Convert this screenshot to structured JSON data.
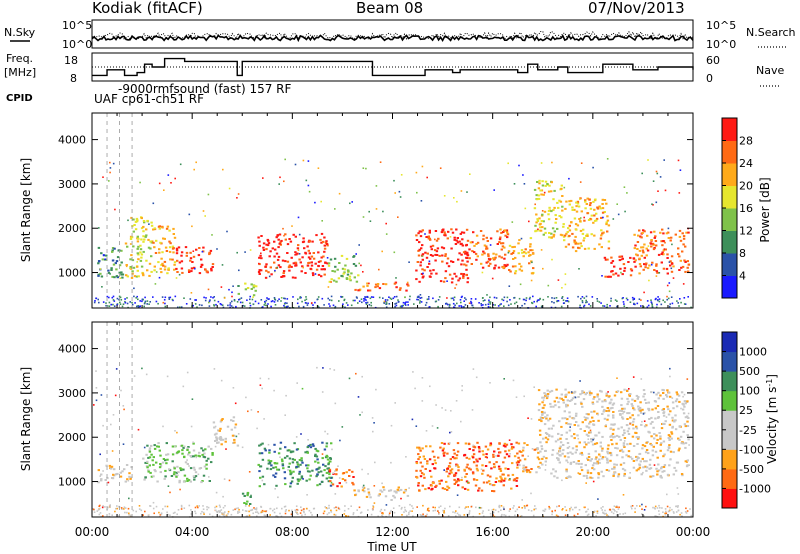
{
  "header": {
    "station": "Kodiak (fitACF)",
    "beam": "Beam 08",
    "date": "07/Nov/2013"
  },
  "left_labels": {
    "nsky": "N.Sky",
    "freq": "Freq.",
    "freq_unit": "[MHz]",
    "cpid": "CPID"
  },
  "right_labels": {
    "nsearch": "N.Search",
    "nave": "Nave"
  },
  "cpid_text": {
    "line1": "-9000rmfsound (fast) 157 RF",
    "line2": "UAF cp61-ch51 RF"
  },
  "colors": {
    "power": [
      "#1a1aff",
      "#2a52a8",
      "#3d8f5a",
      "#7fc24a",
      "#e6e62e",
      "#ffaa1a",
      "#ff6a14",
      "#ff1a14"
    ],
    "velocity": [
      "#ff1010",
      "#ff6a14",
      "#ffa21a",
      "#c8c8c8",
      "#c8c8c8",
      "#5ec23a",
      "#3d8f5a",
      "#2a52a8",
      "#1a2ab4"
    ]
  },
  "chart_data": [
    {
      "type": "line",
      "panel": "noise",
      "ylabel_left": "N.Sky",
      "ylabel_right": "N.Search",
      "yticks": [
        "10^5",
        "10^0"
      ],
      "yticks_right": [
        "10^5",
        "10^0"
      ],
      "xlim": [
        0,
        24
      ]
    },
    {
      "type": "line",
      "panel": "frequency / nave",
      "ylabel_left": "Freq. [MHz]",
      "yticks_left": [
        "18",
        "8"
      ],
      "ylabel_right": "Nave",
      "yticks_right": [
        "60",
        "0"
      ],
      "series": [
        {
          "name": "Freq.",
          "x": [
            0,
            0.6,
            1.3,
            1.8,
            2.1,
            2.4,
            2.9,
            3.7,
            5.8,
            6.0,
            11.0,
            11.2,
            13.3,
            14.4,
            14.7,
            17.0,
            17.4,
            17.8,
            18.6,
            19.0,
            20.4,
            21.6,
            22.6,
            24
          ],
          "values": [
            10,
            12,
            10,
            11,
            14,
            13,
            16,
            15,
            10,
            15,
            15,
            10,
            12,
            11,
            12,
            11,
            14,
            12,
            13,
            11,
            14,
            12,
            13,
            12
          ]
        },
        {
          "name": "Nave",
          "x": [
            0,
            24
          ],
          "values": [
            30,
            30
          ]
        }
      ],
      "xlim": [
        0,
        24
      ]
    },
    {
      "type": "heatmap",
      "panel": "power",
      "ylabel": "Slant Range [km]",
      "yticks": [
        1000,
        2000,
        3000,
        4000
      ],
      "colorbar_label": "Power [dB]",
      "colorbar_ticks": [
        4,
        8,
        12,
        16,
        20,
        24,
        28
      ],
      "xlim": [
        0,
        24
      ],
      "ylim": [
        200,
        4600
      ],
      "blobs": [
        {
          "t0": 0.2,
          "t1": 1.3,
          "r0": 900,
          "r1": 1600,
          "level": 2
        },
        {
          "t0": 1.3,
          "t1": 2.4,
          "r0": 900,
          "r1": 2300,
          "level": 4
        },
        {
          "t0": 2.4,
          "t1": 3.3,
          "r0": 1000,
          "r1": 2100,
          "level": 5
        },
        {
          "t0": 3.3,
          "t1": 4.8,
          "r0": 1000,
          "r1": 1600,
          "level": 7
        },
        {
          "t0": 5.8,
          "t1": 6.6,
          "r0": 500,
          "r1": 800,
          "level": 3
        },
        {
          "t0": 6.6,
          "t1": 9.4,
          "r0": 900,
          "r1": 1900,
          "level": 7
        },
        {
          "t0": 9.4,
          "t1": 10.6,
          "r0": 800,
          "r1": 1400,
          "level": 3
        },
        {
          "t0": 10.4,
          "t1": 12.6,
          "r0": 600,
          "r1": 800,
          "level": 6
        },
        {
          "t0": 12.9,
          "t1": 15.0,
          "r0": 800,
          "r1": 2000,
          "level": 7
        },
        {
          "t0": 15.0,
          "t1": 16.6,
          "r0": 1100,
          "r1": 2000,
          "level": 6
        },
        {
          "t0": 16.6,
          "t1": 17.6,
          "r0": 1000,
          "r1": 1800,
          "level": 5
        },
        {
          "t0": 17.6,
          "t1": 18.8,
          "r0": 1800,
          "r1": 3100,
          "level": 4
        },
        {
          "t0": 18.8,
          "t1": 20.6,
          "r0": 1500,
          "r1": 2700,
          "level": 5
        },
        {
          "t0": 20.4,
          "t1": 21.6,
          "r0": 900,
          "r1": 1400,
          "level": 7
        },
        {
          "t0": 21.6,
          "t1": 23.8,
          "r0": 1000,
          "r1": 2000,
          "level": 6
        }
      ]
    },
    {
      "type": "heatmap",
      "panel": "velocity",
      "ylabel": "Slant Range [km]",
      "yticks": [
        1000,
        2000,
        3000,
        4000
      ],
      "colorbar_label": "Velocity [m s^-1]",
      "colorbar_ticks": [
        1000,
        500,
        100,
        25,
        -25,
        -100,
        -500,
        -1000
      ],
      "xlim": [
        0,
        24
      ],
      "ylim": [
        200,
        4600
      ],
      "xticks": [
        "00:00",
        "04:00",
        "08:00",
        "12:00",
        "16:00",
        "20:00",
        "00:00"
      ],
      "xlabel": "Time UT",
      "blobs": [
        {
          "t0": 0.2,
          "t1": 1.6,
          "r0": 1000,
          "r1": 1400,
          "level": 3
        },
        {
          "t0": 2.0,
          "t1": 4.8,
          "r0": 1000,
          "r1": 1900,
          "level": 5
        },
        {
          "t0": 4.8,
          "t1": 5.8,
          "r0": 1800,
          "r1": 2500,
          "level": 3
        },
        {
          "t0": 5.8,
          "t1": 6.4,
          "r0": 500,
          "r1": 800,
          "level": 5
        },
        {
          "t0": 6.6,
          "t1": 9.6,
          "r0": 900,
          "r1": 1900,
          "level": 6
        },
        {
          "t0": 9.4,
          "t1": 10.4,
          "r0": 900,
          "r1": 1300,
          "level": 1
        },
        {
          "t0": 10.4,
          "t1": 12.6,
          "r0": 600,
          "r1": 900,
          "level": 3
        },
        {
          "t0": 12.9,
          "t1": 17.0,
          "r0": 800,
          "r1": 1900,
          "level": 1
        },
        {
          "t0": 17.0,
          "t1": 17.8,
          "r0": 1200,
          "r1": 1900,
          "level": 2
        },
        {
          "t0": 17.8,
          "t1": 23.8,
          "r0": 1100,
          "r1": 3100,
          "level": 3
        }
      ]
    }
  ]
}
